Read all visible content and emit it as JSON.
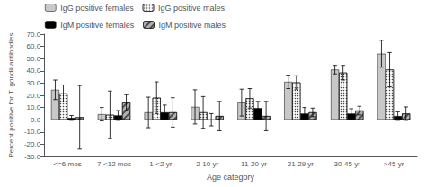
{
  "chart_data": {
    "type": "bar",
    "xlabel": "Age category",
    "ylabel": "Percent positive for T. gondii antibodies",
    "categories": [
      "<=6 mos",
      "7-<12 mos",
      "1-<2 yr",
      "2-10 yr",
      "11-20 yr",
      "21-29 yr",
      "30-45 yr",
      ">45 yr"
    ],
    "series": [
      {
        "name": "IgG positive females",
        "color": "#c8c8c8",
        "values": [
          24.5,
          4.5,
          6.0,
          10.5,
          14.0,
          31.0,
          41.0,
          54.0
        ],
        "errors": [
          8.0,
          5.5,
          12.5,
          14.0,
          11.0,
          5.5,
          3.5,
          11.0
        ]
      },
      {
        "name": "IgG positive males",
        "color": "#ffffff",
        "values": [
          21.5,
          4.0,
          18.0,
          6.0,
          17.5,
          30.5,
          38.5,
          41.0
        ],
        "errors": [
          7.0,
          19.5,
          13.0,
          13.0,
          8.0,
          5.5,
          6.0,
          14.0
        ]
      },
      {
        "name": "IgM positive females",
        "color": "#000000",
        "values": [
          1.5,
          3.5,
          6.0,
          0.0,
          9.5,
          5.0,
          5.0,
          3.0
        ],
        "errors": [
          2.0,
          4.0,
          6.0,
          5.0,
          5.5,
          5.0,
          4.0,
          3.5
        ]
      },
      {
        "name": "IgM positive males",
        "color": "#b0b0b0",
        "values": [
          2.0,
          14.0,
          6.0,
          3.0,
          3.0,
          6.0,
          7.5,
          5.0
        ],
        "errors": [
          26.0,
          6.5,
          12.0,
          12.0,
          12.0,
          3.5,
          3.5,
          5.5
        ]
      }
    ],
    "ylim": [
      -30,
      70
    ],
    "yticks": [
      {
        "value": -30,
        "label": "-30.0"
      },
      {
        "value": -20,
        "label": "-20.0"
      },
      {
        "value": -10,
        "label": "-10.0"
      },
      {
        "value": 0,
        "label": "0.0"
      },
      {
        "value": 10,
        "label": "10.0"
      },
      {
        "value": 20,
        "label": "20.0"
      },
      {
        "value": 30,
        "label": "30.0"
      },
      {
        "value": 40,
        "label": "40.0"
      },
      {
        "value": 50,
        "label": "50.0"
      },
      {
        "value": 60,
        "label": "60.0"
      },
      {
        "value": 70,
        "label": "70.0"
      }
    ],
    "grid": false,
    "legend": "upper left"
  }
}
